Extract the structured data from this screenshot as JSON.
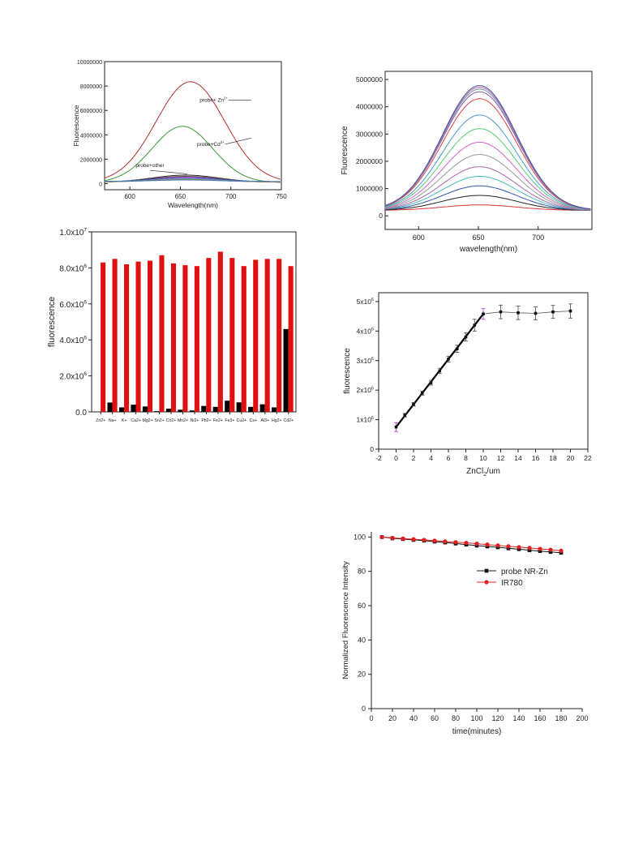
{
  "chart_data": [
    {
      "type": "line",
      "xlabel": "Wavelength(nm)",
      "ylabel": "Fluorescence",
      "xlim": [
        575,
        750
      ],
      "ylim": [
        -500000,
        10000000
      ],
      "xticks": [
        600,
        650,
        700,
        750
      ],
      "yticks": [
        0,
        2000000,
        4000000,
        6000000,
        8000000,
        10000000
      ],
      "ytick_labels": [
        "0",
        "2000000",
        "4000000",
        "6000000",
        "8000000",
        "10000000"
      ],
      "series": [
        {
          "color": "#b03030",
          "peak_x": 660,
          "peak_y": 8350000,
          "width": 34,
          "base": 100000
        },
        {
          "color": "#3a9a3a",
          "peak_x": 652,
          "peak_y": 4700000,
          "width": 30,
          "base": 80000
        },
        {
          "color": "#222222",
          "peak_x": 655,
          "peak_y": 700000,
          "width": 32,
          "base": 120000
        },
        {
          "color": "#7a4a3a",
          "peak_x": 655,
          "peak_y": 600000,
          "width": 32,
          "base": 120000
        },
        {
          "color": "#3a3acc",
          "peak_x": 655,
          "peak_y": 520000,
          "width": 32,
          "base": 150000
        },
        {
          "color": "#cc33cc",
          "peak_x": 655,
          "peak_y": 450000,
          "width": 32,
          "base": 130000
        },
        {
          "color": "#33aacc",
          "peak_x": 655,
          "peak_y": 400000,
          "width": 32,
          "base": 160000
        },
        {
          "color": "#999933",
          "peak_x": 655,
          "peak_y": 350000,
          "width": 32,
          "base": 140000
        },
        {
          "color": "#4477aa",
          "peak_x": 655,
          "peak_y": 300000,
          "width": 32,
          "base": 170000
        }
      ],
      "annotations": [
        {
          "text": "probe+ Zn",
          "sup": "2+",
          "x": 683,
          "y": 6700000,
          "arrow_to": [
            700,
            6300000
          ]
        },
        {
          "text": "probe+Cd",
          "sup": "2+",
          "x": 680,
          "y": 3100000,
          "arrow_to": [
            700,
            3200000
          ]
        },
        {
          "text": "probe+other",
          "x": 620,
          "y": 1350000,
          "arrow_to": [
            657,
            800000
          ]
        }
      ]
    },
    {
      "type": "line",
      "xlabel": "wavelength(nm)",
      "ylabel": "Fluorescence",
      "xlim": [
        572,
        745
      ],
      "ylim": [
        -500000,
        5300000
      ],
      "xticks": [
        600,
        650,
        700
      ],
      "yticks": [
        0,
        1000000,
        2000000,
        3000000,
        4000000,
        5000000
      ],
      "ytick_labels": [
        "0",
        "1000000",
        "2000000",
        "3000000",
        "4000000",
        "5000000"
      ],
      "series": [
        {
          "color": "#dd3333",
          "peak": 400000
        },
        {
          "color": "#222222",
          "peak": 750000
        },
        {
          "color": "#3355aa",
          "peak": 1100000
        },
        {
          "color": "#44bbbb",
          "peak": 1450000
        },
        {
          "color": "#aa66aa",
          "peak": 1800000
        },
        {
          "color": "#999999",
          "peak": 2250000
        },
        {
          "color": "#cc66cc",
          "peak": 2700000
        },
        {
          "color": "#55cc77",
          "peak": 3200000
        },
        {
          "color": "#4499cc",
          "peak": 3700000
        },
        {
          "color": "#dd4444",
          "peak": 4300000
        },
        {
          "color": "#8855aa",
          "peak": 4550000
        },
        {
          "color": "#6699aa",
          "peak": 4650000
        },
        {
          "color": "#cc66aa",
          "peak": 4720000
        },
        {
          "color": "#445599",
          "peak": 4780000
        }
      ],
      "peak_x": 651,
      "width": 31,
      "base": 200000
    },
    {
      "type": "bar",
      "ylabel": "fluorescence",
      "ylim": [
        0,
        10000000
      ],
      "yticks": [
        0,
        2000000,
        4000000,
        6000000,
        8000000,
        10000000
      ],
      "ytick_labels": [
        {
          "mant": "0.0",
          "exp": ""
        },
        {
          "mant": "2.0x10",
          "exp": "6"
        },
        {
          "mant": "4.0x10",
          "exp": "6"
        },
        {
          "mant": "6.0x10",
          "exp": "6"
        },
        {
          "mant": "8.0x10",
          "exp": "6"
        },
        {
          "mant": "1.0x10",
          "exp": "7"
        }
      ],
      "categories": [
        "Zn2+",
        "Na+",
        "K+",
        "Ca2+",
        "Mg2+",
        "Sn2+",
        "Co2+",
        "Mn2+",
        "Ni2+",
        "Pb2+",
        "Fe2+",
        "Fe3+",
        "Cu2+",
        "Cs+",
        "Al3+",
        "Hg2+",
        "Cd2+"
      ],
      "series": [
        {
          "color": "#000000",
          "values": [
            0,
            520000,
            250000,
            400000,
            300000,
            40000,
            180000,
            120000,
            80000,
            330000,
            280000,
            620000,
            530000,
            280000,
            420000,
            250000,
            4600000
          ]
        },
        {
          "color": "#e01010",
          "values": [
            8300000,
            8500000,
            8200000,
            8350000,
            8400000,
            8700000,
            8250000,
            8150000,
            8100000,
            8550000,
            8900000,
            8550000,
            8100000,
            8450000,
            8500000,
            8500000,
            8100000
          ]
        }
      ]
    },
    {
      "type": "scatter",
      "xlabel_main": "ZnCl",
      "xlabel_sub": "2",
      "xlabel_rest": "/um",
      "ylabel": "fluorescence",
      "xlim": [
        -2,
        22
      ],
      "ylim": [
        0,
        5300000
      ],
      "xticks": [
        -2,
        0,
        2,
        4,
        6,
        8,
        10,
        12,
        14,
        16,
        18,
        20,
        22
      ],
      "ytick_labels": [
        {
          "mant": "0",
          "exp": ""
        },
        {
          "mant": "1x10",
          "exp": "6"
        },
        {
          "mant": "2x10",
          "exp": "6"
        },
        {
          "mant": "3x10",
          "exp": "6"
        },
        {
          "mant": "4x10",
          "exp": "6"
        },
        {
          "mant": "5x10",
          "exp": "6"
        }
      ],
      "yticks": [
        0,
        1000000,
        2000000,
        3000000,
        4000000,
        5000000
      ],
      "x": [
        0,
        1,
        2,
        3,
        4,
        5,
        6,
        7,
        8,
        9,
        10,
        12,
        14,
        16,
        18,
        20
      ],
      "y": [
        750000,
        1150000,
        1520000,
        1900000,
        2250000,
        2650000,
        3050000,
        3400000,
        3800000,
        4200000,
        4580000,
        4650000,
        4620000,
        4600000,
        4650000,
        4680000
      ],
      "err": [
        150000,
        60000,
        60000,
        70000,
        80000,
        90000,
        100000,
        120000,
        140000,
        200000,
        180000,
        230000,
        230000,
        220000,
        220000,
        240000
      ],
      "fit": {
        "x": [
          0,
          10
        ],
        "y": [
          750000,
          4580000
        ]
      }
    },
    {
      "type": "line",
      "xlabel": "time(minutes)",
      "ylabel": "Normalized Fluorescence Intensity",
      "xlim": [
        0,
        200
      ],
      "ylim": [
        0,
        103
      ],
      "xticks": [
        0,
        20,
        40,
        60,
        80,
        100,
        120,
        140,
        160,
        180,
        200
      ],
      "yticks": [
        0,
        20,
        40,
        60,
        80,
        100
      ],
      "legend": "top-right",
      "series": [
        {
          "name": "probe NR-Zn",
          "color": "#111111",
          "x": [
            10,
            20,
            30,
            40,
            50,
            60,
            70,
            80,
            90,
            100,
            110,
            120,
            130,
            140,
            150,
            160,
            170,
            180
          ],
          "y": [
            100,
            99.2,
            98.8,
            98.3,
            97.9,
            97.3,
            96.8,
            96.2,
            95.6,
            95.0,
            94.5,
            94.0,
            93.4,
            92.9,
            92.3,
            91.8,
            91.3,
            90.8
          ]
        },
        {
          "name": "IR780",
          "color": "#e02020",
          "x": [
            10,
            20,
            30,
            40,
            50,
            60,
            70,
            80,
            90,
            100,
            110,
            120,
            130,
            140,
            150,
            160,
            170,
            180
          ],
          "y": [
            100,
            99.5,
            99.1,
            98.7,
            98.3,
            97.9,
            97.4,
            97.0,
            96.6,
            96.1,
            95.6,
            95.1,
            94.6,
            94.1,
            93.6,
            93.1,
            92.6,
            92.0
          ]
        }
      ]
    }
  ]
}
